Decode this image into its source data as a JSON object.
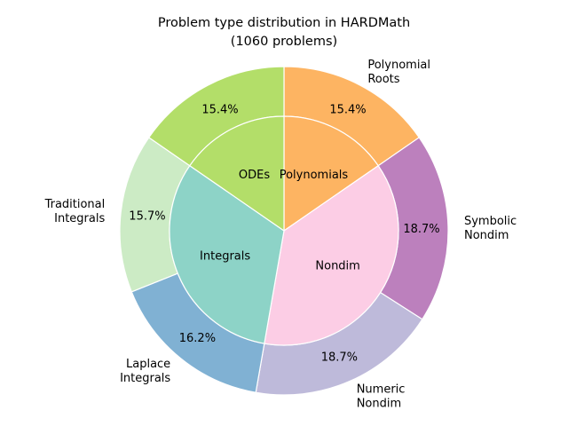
{
  "chart_data": {
    "type": "pie",
    "subtype": "nested-donut",
    "title": "Problem type distribution in HARDMath",
    "subtitle": "(1060 problems)",
    "start_angle_deg": 90,
    "direction": "clockwise",
    "outer_ring": {
      "slices": [
        {
          "label": "Polynomial\nRoots",
          "value": 15.4,
          "pct_label": "15.4%",
          "color": "#FDB462"
        },
        {
          "label": "Symbolic\nNondim",
          "value": 18.7,
          "pct_label": "18.7%",
          "color": "#BC80BD"
        },
        {
          "label": "Numeric\nNondim",
          "value": 18.7,
          "pct_label": "18.7%",
          "color": "#BEBADA"
        },
        {
          "label": "Laplace\nIntegrals",
          "value": 16.2,
          "pct_label": "16.2%",
          "color": "#80B1D3"
        },
        {
          "label": "Traditional\nIntegrals",
          "value": 15.7,
          "pct_label": "15.7%",
          "color": "#CCEBC5"
        },
        {
          "label": "",
          "value": 15.4,
          "pct_label": "15.4%",
          "color": "#B3DE69"
        }
      ]
    },
    "inner_ring": {
      "slices": [
        {
          "label": "Polynomials",
          "value": 15.4,
          "color": "#FDB462"
        },
        {
          "label": "Nondim",
          "value": 37.4,
          "color": "#FCCDE5"
        },
        {
          "label": "Integrals",
          "value": 31.9,
          "color": "#8DD3C7"
        },
        {
          "label": "ODEs",
          "value": 15.4,
          "color": "#B3DE69"
        }
      ]
    }
  }
}
